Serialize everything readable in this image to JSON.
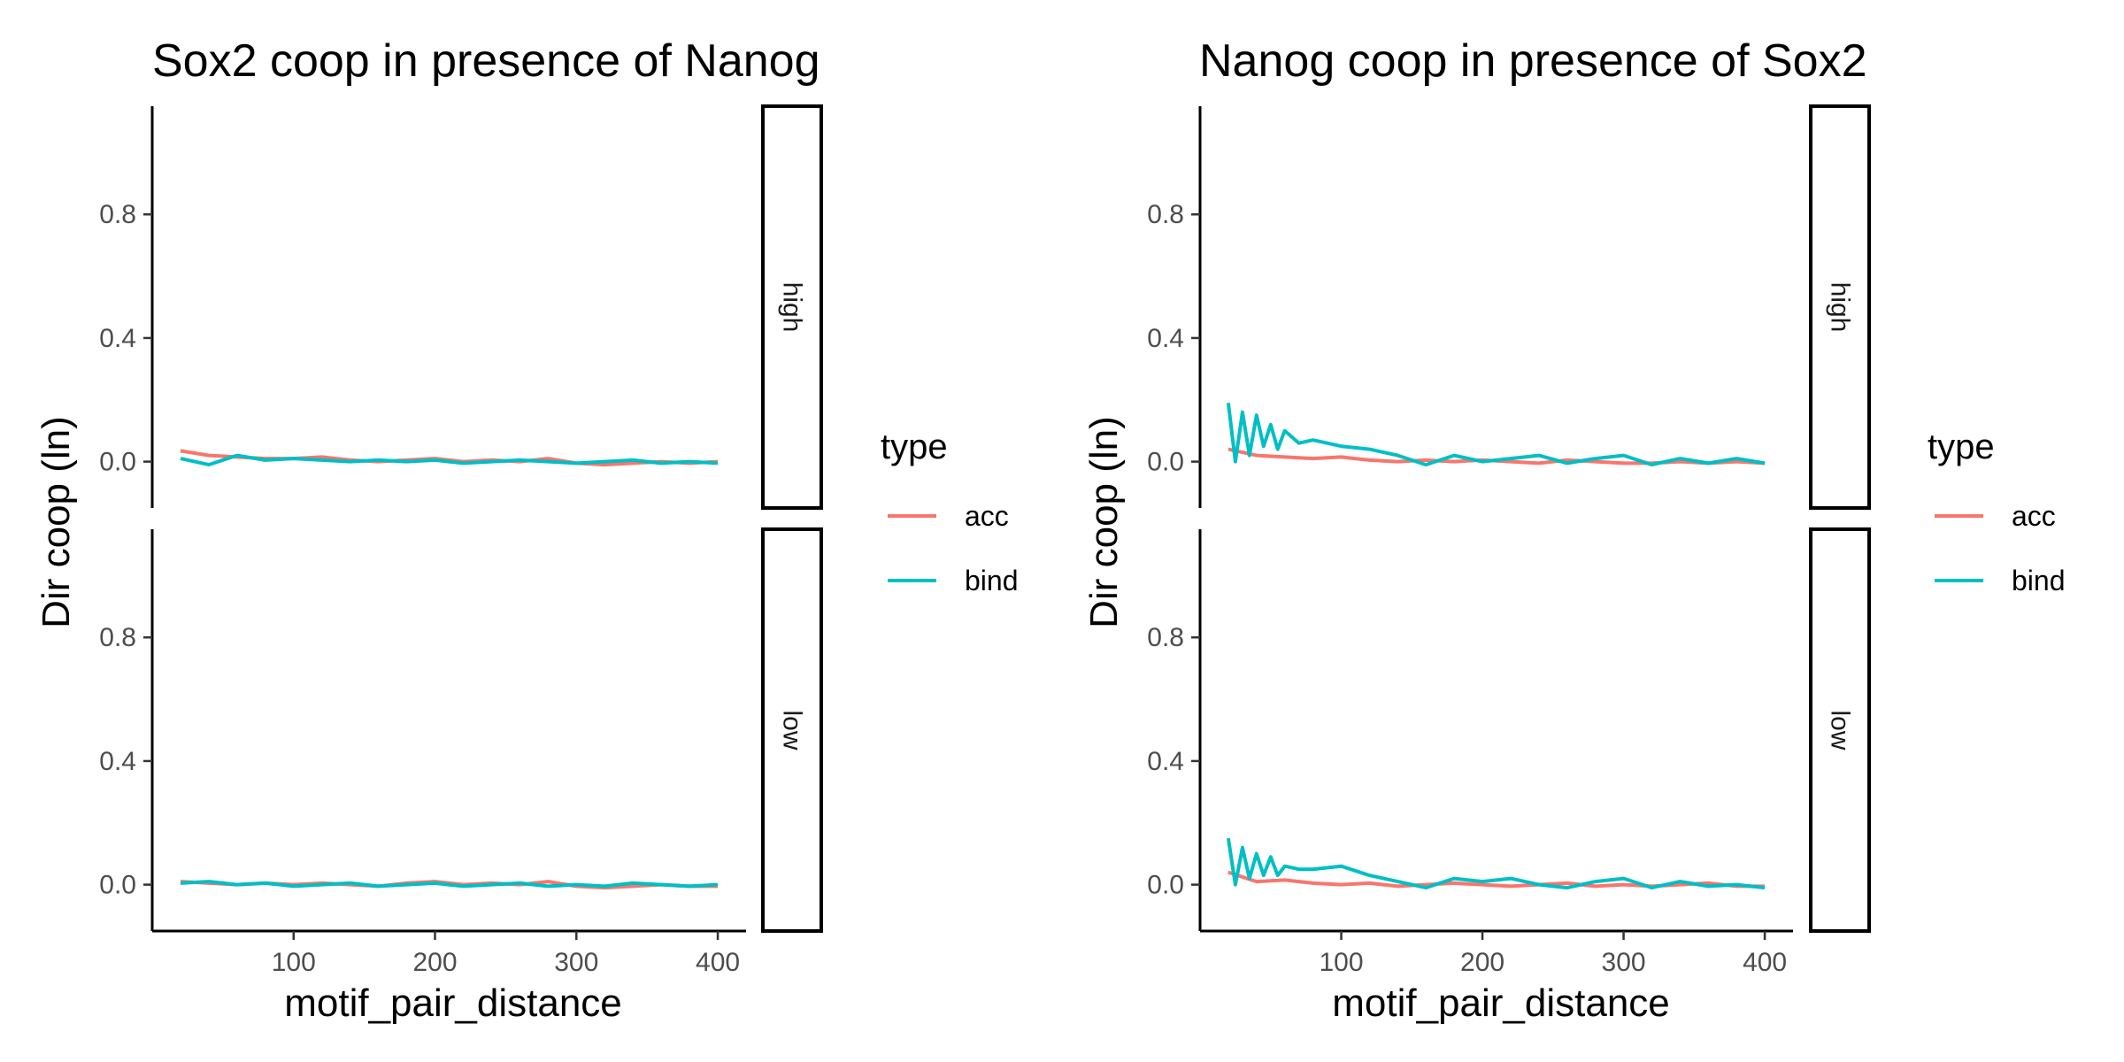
{
  "colors": {
    "acc": "#F8766D",
    "bind": "#00BFC4"
  },
  "chart_data": [
    {
      "type": "line",
      "title": "Sox2 coop in presence of Nanog",
      "xlabel": "motif_pair_distance",
      "ylabel": "Dir coop (ln)",
      "xlim": [
        0,
        420
      ],
      "xticks": [
        100,
        200,
        300,
        400
      ],
      "ylim": [
        -0.15,
        1.15
      ],
      "yticks": [
        0.0,
        0.4,
        0.8
      ],
      "ytick_labels": [
        "0.0",
        "0.4",
        "0.8"
      ],
      "legend": {
        "title": "type",
        "position": "right",
        "entries": [
          "acc",
          "bind"
        ]
      },
      "facets": [
        {
          "label": "high",
          "series": [
            {
              "name": "acc",
              "x": [
                20,
                40,
                60,
                80,
                100,
                120,
                140,
                160,
                180,
                200,
                220,
                240,
                260,
                280,
                300,
                320,
                340,
                360,
                380,
                400
              ],
              "values": [
                0.035,
                0.02,
                0.015,
                0.01,
                0.01,
                0.015,
                0.005,
                0.0,
                0.005,
                0.01,
                0.0,
                0.005,
                0.0,
                0.01,
                -0.005,
                -0.01,
                -0.005,
                0.0,
                -0.005,
                0.0
              ]
            },
            {
              "name": "bind",
              "x": [
                20,
                40,
                60,
                80,
                100,
                120,
                140,
                160,
                180,
                200,
                220,
                240,
                260,
                280,
                300,
                320,
                340,
                360,
                380,
                400
              ],
              "values": [
                0.01,
                -0.01,
                0.02,
                0.005,
                0.01,
                0.005,
                0.0,
                0.005,
                0.0,
                0.005,
                -0.005,
                0.0,
                0.005,
                0.0,
                -0.005,
                0.0,
                0.005,
                -0.005,
                0.0,
                -0.005
              ]
            }
          ]
        },
        {
          "label": "low",
          "series": [
            {
              "name": "acc",
              "x": [
                20,
                40,
                60,
                80,
                100,
                120,
                140,
                160,
                180,
                200,
                220,
                240,
                260,
                280,
                300,
                320,
                340,
                360,
                380,
                400
              ],
              "values": [
                0.01,
                0.005,
                0.0,
                0.005,
                0.0,
                0.005,
                0.0,
                -0.005,
                0.005,
                0.01,
                0.0,
                0.005,
                0.0,
                0.01,
                -0.005,
                -0.01,
                -0.005,
                0.0,
                -0.005,
                -0.005
              ]
            },
            {
              "name": "bind",
              "x": [
                20,
                40,
                60,
                80,
                100,
                120,
                140,
                160,
                180,
                200,
                220,
                240,
                260,
                280,
                300,
                320,
                340,
                360,
                380,
                400
              ],
              "values": [
                0.005,
                0.01,
                0.0,
                0.005,
                -0.005,
                0.0,
                0.005,
                -0.005,
                0.0,
                0.005,
                -0.005,
                0.0,
                0.005,
                -0.005,
                0.0,
                -0.005,
                0.005,
                0.0,
                -0.005,
                0.0
              ]
            }
          ]
        }
      ]
    },
    {
      "type": "line",
      "title": "Nanog coop in presence of Sox2",
      "xlabel": "motif_pair_distance",
      "ylabel": "Dir coop (ln)",
      "xlim": [
        0,
        420
      ],
      "xticks": [
        100,
        200,
        300,
        400
      ],
      "ylim": [
        -0.15,
        1.15
      ],
      "yticks": [
        0.0,
        0.4,
        0.8
      ],
      "ytick_labels": [
        "0.0",
        "0.4",
        "0.8"
      ],
      "legend": {
        "title": "type",
        "position": "right",
        "entries": [
          "acc",
          "bind"
        ]
      },
      "facets": [
        {
          "label": "high",
          "series": [
            {
              "name": "acc",
              "x": [
                20,
                40,
                60,
                80,
                100,
                120,
                140,
                160,
                180,
                200,
                220,
                240,
                260,
                280,
                300,
                320,
                340,
                360,
                380,
                400
              ],
              "values": [
                0.04,
                0.02,
                0.015,
                0.01,
                0.015,
                0.005,
                0.0,
                0.005,
                0.0,
                0.005,
                0.0,
                -0.005,
                0.005,
                0.0,
                -0.005,
                -0.005,
                0.0,
                -0.005,
                0.0,
                -0.005
              ]
            },
            {
              "name": "bind",
              "x": [
                20,
                25,
                30,
                35,
                40,
                45,
                50,
                55,
                60,
                70,
                80,
                100,
                120,
                140,
                160,
                180,
                200,
                220,
                240,
                260,
                280,
                300,
                320,
                340,
                360,
                380,
                400
              ],
              "values": [
                0.19,
                0.0,
                0.16,
                0.02,
                0.15,
                0.05,
                0.12,
                0.04,
                0.1,
                0.06,
                0.07,
                0.05,
                0.04,
                0.02,
                -0.01,
                0.02,
                0.0,
                0.01,
                0.02,
                -0.005,
                0.01,
                0.02,
                -0.01,
                0.01,
                -0.005,
                0.01,
                -0.005
              ]
            }
          ]
        },
        {
          "label": "low",
          "series": [
            {
              "name": "acc",
              "x": [
                20,
                40,
                60,
                80,
                100,
                120,
                140,
                160,
                180,
                200,
                220,
                240,
                260,
                280,
                300,
                320,
                340,
                360,
                380,
                400
              ],
              "values": [
                0.04,
                0.01,
                0.015,
                0.005,
                0.0,
                0.005,
                -0.005,
                0.0,
                0.005,
                0.0,
                -0.005,
                0.0,
                0.005,
                -0.005,
                0.0,
                -0.005,
                0.0,
                0.005,
                -0.005,
                -0.005
              ]
            },
            {
              "name": "bind",
              "x": [
                20,
                25,
                30,
                35,
                40,
                45,
                50,
                55,
                60,
                70,
                80,
                100,
                120,
                140,
                160,
                180,
                200,
                220,
                240,
                260,
                280,
                300,
                320,
                340,
                360,
                380,
                400
              ],
              "values": [
                0.15,
                0.0,
                0.12,
                0.02,
                0.1,
                0.03,
                0.09,
                0.03,
                0.06,
                0.05,
                0.05,
                0.06,
                0.03,
                0.01,
                -0.01,
                0.02,
                0.01,
                0.02,
                0.0,
                -0.01,
                0.01,
                0.02,
                -0.01,
                0.01,
                -0.005,
                0.0,
                -0.01
              ]
            }
          ]
        }
      ]
    }
  ]
}
